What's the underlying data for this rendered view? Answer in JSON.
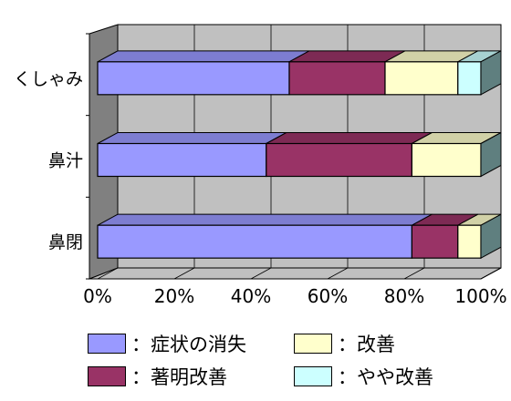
{
  "chart_data": {
    "type": "bar",
    "orientation": "horizontal",
    "stacked": "percent",
    "three_d": true,
    "categories": [
      "くしゃみ",
      "鼻汁",
      "鼻閉"
    ],
    "series": [
      {
        "name": "症状の消失",
        "values": [
          50,
          44,
          82
        ],
        "color": "#9999ff"
      },
      {
        "name": "著明改善",
        "values": [
          25,
          38,
          12
        ],
        "color": "#993366"
      },
      {
        "name": "改善",
        "values": [
          19,
          18,
          6
        ],
        "color": "#ffffcc"
      },
      {
        "name": "やや改善",
        "values": [
          6,
          0,
          0
        ],
        "color": "#ccffff"
      }
    ],
    "x_ticks": [
      "0%",
      "20%",
      "40%",
      "60%",
      "80%",
      "100%"
    ],
    "xlim": [
      0,
      100
    ],
    "grid": true,
    "legend_position": "bottom",
    "legend_separator": "：",
    "wall_color": "#c0c0c0",
    "side_wall_color": "#808080"
  }
}
